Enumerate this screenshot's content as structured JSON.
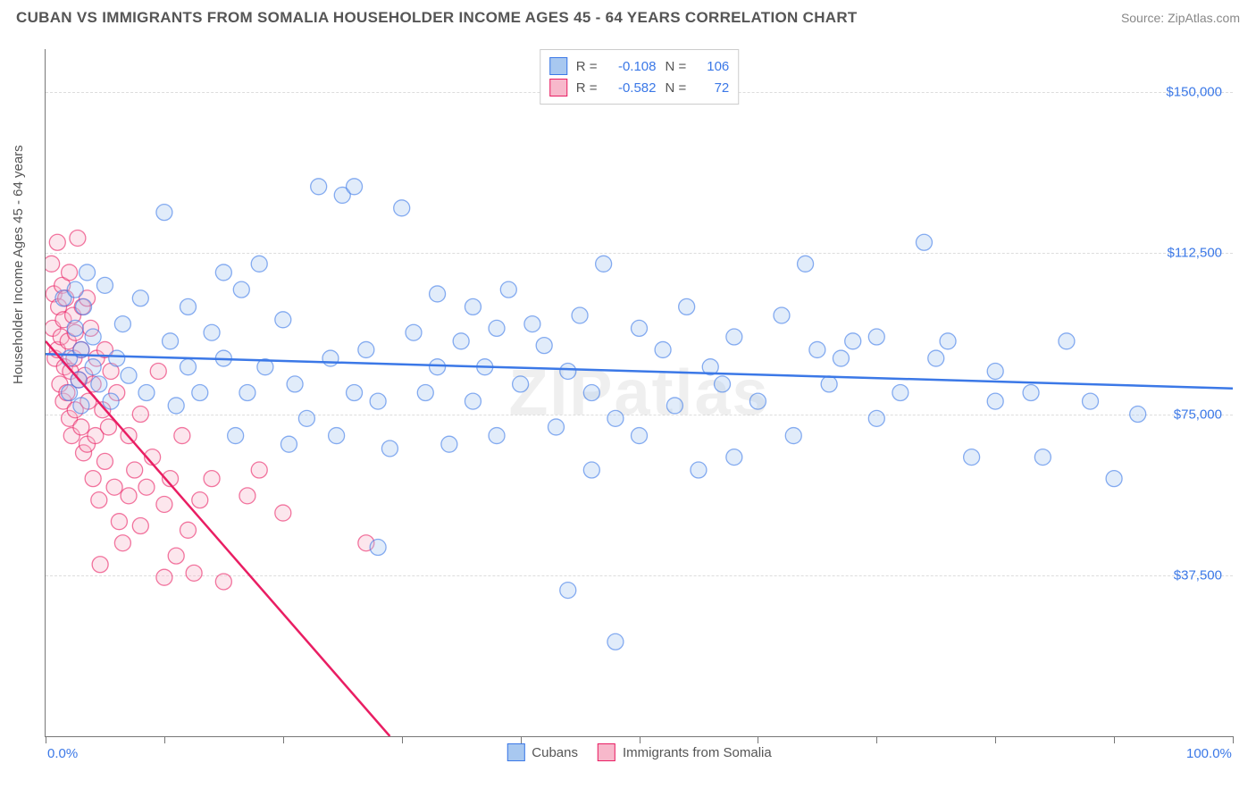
{
  "title": "CUBAN VS IMMIGRANTS FROM SOMALIA HOUSEHOLDER INCOME AGES 45 - 64 YEARS CORRELATION CHART",
  "source": "Source: ZipAtlas.com",
  "watermark": "ZIPatlas",
  "chart": {
    "type": "scatter",
    "y_label": "Householder Income Ages 45 - 64 years",
    "x_range": [
      0,
      100
    ],
    "y_range": [
      0,
      160000
    ],
    "x_ticks_pct": [
      0,
      10,
      20,
      30,
      40,
      50,
      60,
      70,
      80,
      90,
      100
    ],
    "x_tick_labels": {
      "0": "0.0%",
      "100": "100.0%"
    },
    "y_gridlines": [
      37500,
      75000,
      112500,
      150000
    ],
    "y_tick_labels": {
      "37500": "$37,500",
      "75000": "$75,000",
      "112500": "$112,500",
      "150000": "$150,000"
    },
    "background_color": "#ffffff",
    "grid_color": "#dddddd",
    "axis_color": "#777777",
    "tick_label_color": "#3b78e7",
    "title_color": "#555555",
    "title_fontsize": 17,
    "label_fontsize": 15,
    "marker_radius": 9,
    "marker_opacity": 0.35,
    "trendline_width": 2.5
  },
  "series": {
    "cubans": {
      "label": "Cubans",
      "fill_color": "#a8c8f0",
      "stroke_color": "#3b78e7",
      "r_value": "-0.108",
      "n_value": "106",
      "trendline": {
        "x1": 0,
        "y1": 89000,
        "x2": 100,
        "y2": 81000
      },
      "points": [
        [
          1.5,
          102000
        ],
        [
          2,
          88000
        ],
        [
          2,
          80000
        ],
        [
          2.5,
          95000
        ],
        [
          2.5,
          104000
        ],
        [
          2.8,
          83000
        ],
        [
          3,
          90000
        ],
        [
          3,
          77000
        ],
        [
          3.2,
          100000
        ],
        [
          3.5,
          108000
        ],
        [
          4,
          86000
        ],
        [
          4,
          93000
        ],
        [
          4.5,
          82000
        ],
        [
          5,
          105000
        ],
        [
          5.5,
          78000
        ],
        [
          6,
          88000
        ],
        [
          6.5,
          96000
        ],
        [
          7,
          84000
        ],
        [
          8,
          102000
        ],
        [
          8.5,
          80000
        ],
        [
          10,
          122000
        ],
        [
          10.5,
          92000
        ],
        [
          11,
          77000
        ],
        [
          12,
          86000
        ],
        [
          12,
          100000
        ],
        [
          13,
          80000
        ],
        [
          14,
          94000
        ],
        [
          15,
          88000
        ],
        [
          15,
          108000
        ],
        [
          16,
          70000
        ],
        [
          16.5,
          104000
        ],
        [
          17,
          80000
        ],
        [
          18,
          110000
        ],
        [
          18.5,
          86000
        ],
        [
          20,
          97000
        ],
        [
          20.5,
          68000
        ],
        [
          21,
          82000
        ],
        [
          22,
          74000
        ],
        [
          23,
          128000
        ],
        [
          24,
          88000
        ],
        [
          24.5,
          70000
        ],
        [
          25,
          126000
        ],
        [
          26,
          80000
        ],
        [
          26,
          128000
        ],
        [
          27,
          90000
        ],
        [
          28,
          78000
        ],
        [
          28,
          44000
        ],
        [
          29,
          67000
        ],
        [
          30,
          123000
        ],
        [
          31,
          94000
        ],
        [
          32,
          80000
        ],
        [
          33,
          103000
        ],
        [
          33,
          86000
        ],
        [
          34,
          68000
        ],
        [
          35,
          92000
        ],
        [
          36,
          100000
        ],
        [
          36,
          78000
        ],
        [
          37,
          86000
        ],
        [
          38,
          70000
        ],
        [
          38,
          95000
        ],
        [
          39,
          104000
        ],
        [
          40,
          82000
        ],
        [
          41,
          96000
        ],
        [
          42,
          91000
        ],
        [
          43,
          72000
        ],
        [
          44,
          85000
        ],
        [
          44,
          34000
        ],
        [
          45,
          98000
        ],
        [
          46,
          62000
        ],
        [
          46,
          80000
        ],
        [
          47,
          110000
        ],
        [
          48,
          74000
        ],
        [
          48,
          22000
        ],
        [
          50,
          95000
        ],
        [
          50,
          70000
        ],
        [
          52,
          90000
        ],
        [
          53,
          77000
        ],
        [
          54,
          100000
        ],
        [
          55,
          62000
        ],
        [
          56,
          86000
        ],
        [
          57,
          82000
        ],
        [
          58,
          93000
        ],
        [
          58,
          65000
        ],
        [
          60,
          78000
        ],
        [
          62,
          98000
        ],
        [
          63,
          70000
        ],
        [
          64,
          110000
        ],
        [
          65,
          90000
        ],
        [
          66,
          82000
        ],
        [
          67,
          88000
        ],
        [
          68,
          92000
        ],
        [
          70,
          74000
        ],
        [
          70,
          93000
        ],
        [
          72,
          80000
        ],
        [
          74,
          115000
        ],
        [
          75,
          88000
        ],
        [
          76,
          92000
        ],
        [
          78,
          65000
        ],
        [
          80,
          85000
        ],
        [
          80,
          78000
        ],
        [
          83,
          80000
        ],
        [
          84,
          65000
        ],
        [
          86,
          92000
        ],
        [
          88,
          78000
        ],
        [
          90,
          60000
        ],
        [
          92,
          75000
        ]
      ]
    },
    "somalia": {
      "label": "Immigrants from Somalia",
      "fill_color": "#f7b8cb",
      "stroke_color": "#e91e63",
      "r_value": "-0.582",
      "n_value": "72",
      "trendline": {
        "x1": 0,
        "y1": 92000,
        "x2": 29,
        "y2": 0
      },
      "points": [
        [
          0.5,
          110000
        ],
        [
          0.6,
          95000
        ],
        [
          0.7,
          103000
        ],
        [
          0.8,
          88000
        ],
        [
          1,
          115000
        ],
        [
          1,
          90000
        ],
        [
          1.1,
          100000
        ],
        [
          1.2,
          82000
        ],
        [
          1.3,
          93000
        ],
        [
          1.4,
          105000
        ],
        [
          1.5,
          78000
        ],
        [
          1.5,
          97000
        ],
        [
          1.6,
          86000
        ],
        [
          1.7,
          102000
        ],
        [
          1.8,
          80000
        ],
        [
          1.9,
          92000
        ],
        [
          2,
          74000
        ],
        [
          2,
          108000
        ],
        [
          2.1,
          85000
        ],
        [
          2.2,
          70000
        ],
        [
          2.3,
          98000
        ],
        [
          2.4,
          88000
        ],
        [
          2.5,
          76000
        ],
        [
          2.5,
          94000
        ],
        [
          2.7,
          116000
        ],
        [
          2.8,
          83000
        ],
        [
          3,
          72000
        ],
        [
          3,
          90000
        ],
        [
          3.1,
          100000
        ],
        [
          3.2,
          66000
        ],
        [
          3.3,
          84000
        ],
        [
          3.5,
          68000
        ],
        [
          3.5,
          102000
        ],
        [
          3.6,
          78000
        ],
        [
          3.8,
          95000
        ],
        [
          4,
          60000
        ],
        [
          4,
          82000
        ],
        [
          4.2,
          70000
        ],
        [
          4.3,
          88000
        ],
        [
          4.5,
          55000
        ],
        [
          4.6,
          40000
        ],
        [
          4.8,
          76000
        ],
        [
          5,
          64000
        ],
        [
          5,
          90000
        ],
        [
          5.3,
          72000
        ],
        [
          5.5,
          85000
        ],
        [
          5.8,
          58000
        ],
        [
          6,
          80000
        ],
        [
          6.2,
          50000
        ],
        [
          6.5,
          45000
        ],
        [
          7,
          70000
        ],
        [
          7,
          56000
        ],
        [
          7.5,
          62000
        ],
        [
          8,
          75000
        ],
        [
          8,
          49000
        ],
        [
          8.5,
          58000
        ],
        [
          9,
          65000
        ],
        [
          9.5,
          85000
        ],
        [
          10,
          54000
        ],
        [
          10,
          37000
        ],
        [
          10.5,
          60000
        ],
        [
          11,
          42000
        ],
        [
          11.5,
          70000
        ],
        [
          12,
          48000
        ],
        [
          12.5,
          38000
        ],
        [
          13,
          55000
        ],
        [
          14,
          60000
        ],
        [
          15,
          36000
        ],
        [
          17,
          56000
        ],
        [
          18,
          62000
        ],
        [
          20,
          52000
        ],
        [
          27,
          45000
        ]
      ]
    }
  },
  "legend_top": {
    "r_label": "R =",
    "n_label": "N ="
  }
}
